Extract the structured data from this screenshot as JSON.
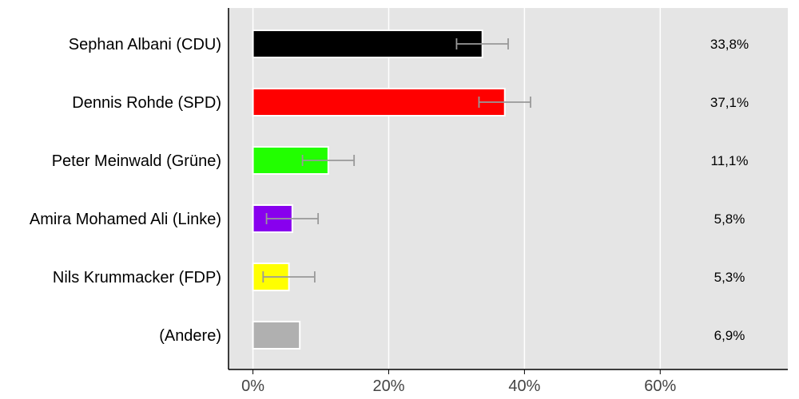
{
  "chart_data": {
    "type": "bar",
    "orientation": "horizontal",
    "categories": [
      "Sephan Albani (CDU)",
      "Dennis Rohde (SPD)",
      "Peter Meinwald (Grüne)",
      "Amira Mohamed Ali (Linke)",
      "Nils Krummacker (FDP)",
      "(Andere)"
    ],
    "values": [
      33.8,
      37.1,
      11.1,
      5.8,
      5.3,
      6.9
    ],
    "value_labels": [
      "33,8%",
      "37,1%",
      "11,1%",
      "5,8%",
      "5,3%",
      "6,9%"
    ],
    "colors": [
      "#000000",
      "#ff0000",
      "#22ff00",
      "#8800ee",
      "#ffff00",
      "#b0b0b0"
    ],
    "error_bars": [
      {
        "low": 30.0,
        "high": 37.6
      },
      {
        "low": 33.3,
        "high": 40.9
      },
      {
        "low": 7.3,
        "high": 14.9
      },
      {
        "low": 2.0,
        "high": 9.6
      },
      {
        "low": 1.5,
        "high": 9.1
      },
      null
    ],
    "xticks": [
      0,
      20,
      40,
      60
    ],
    "xtick_labels": [
      "0%",
      "20%",
      "40%",
      "60%"
    ],
    "xlim": [
      -3.6,
      78.8
    ],
    "title": "",
    "xlabel": "",
    "ylabel": "",
    "grid": true,
    "legend": "none"
  }
}
